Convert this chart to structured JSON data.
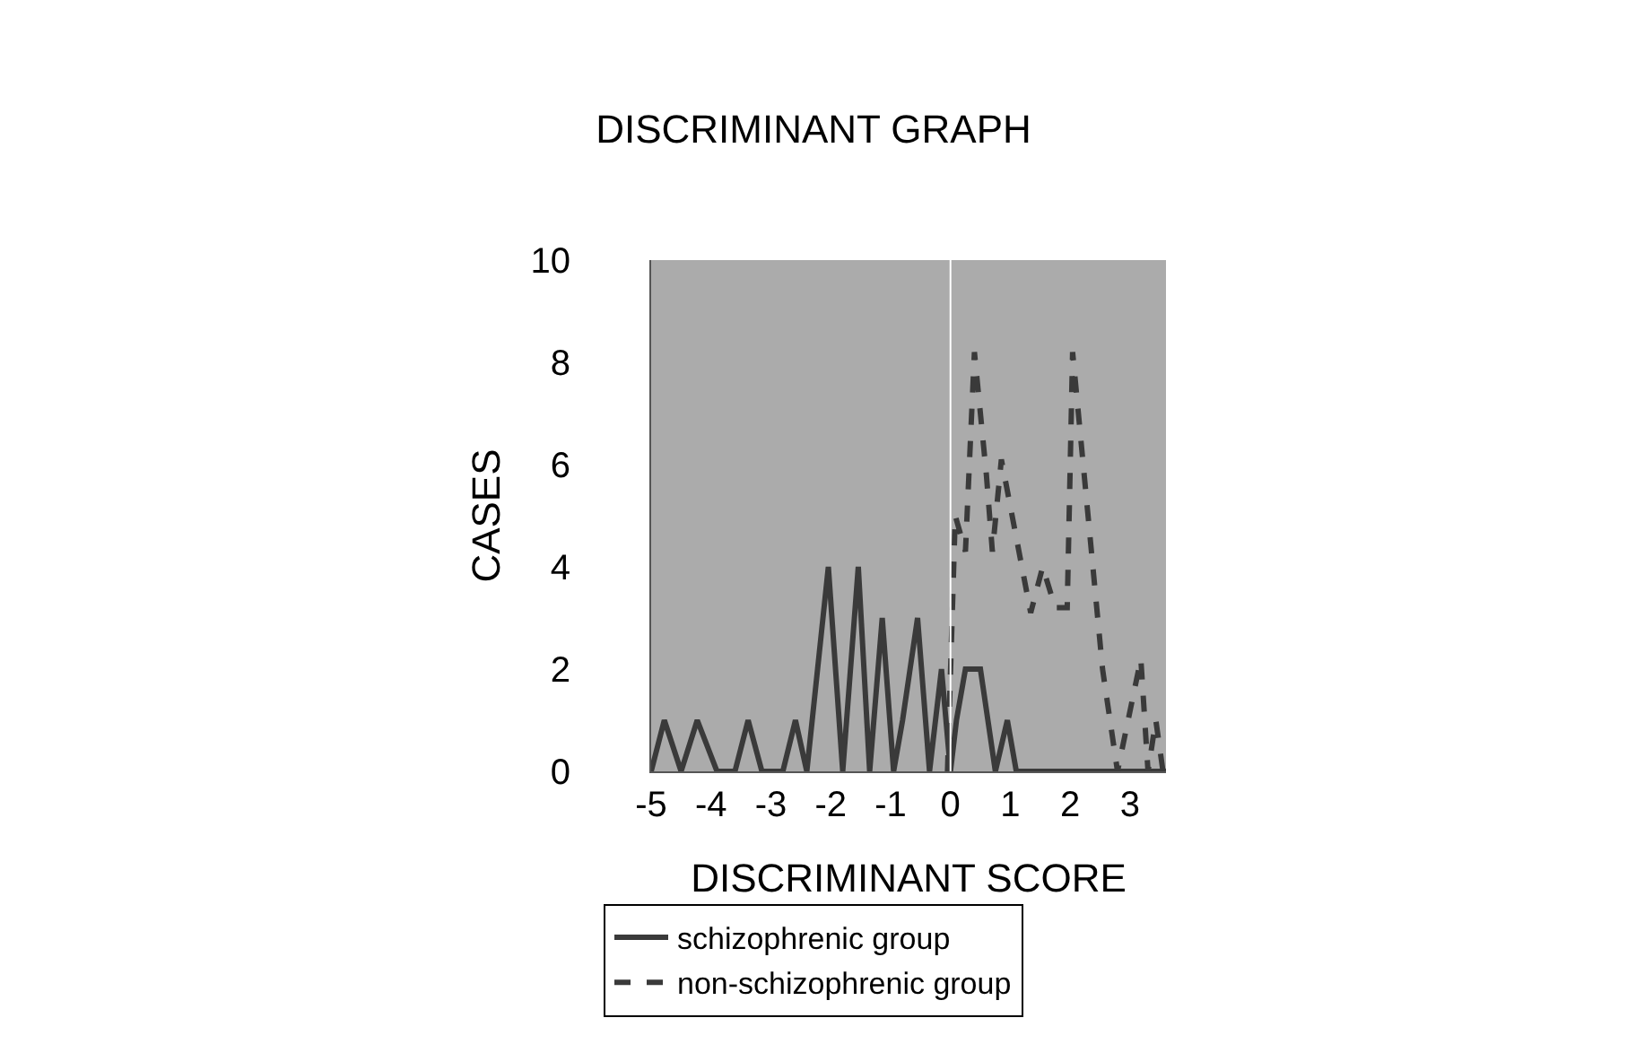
{
  "chart_data": {
    "type": "line",
    "title": "DISCRIMINANT GRAPH",
    "xlabel": "DISCRIMINANT SCORE",
    "ylabel": "CASES",
    "xlim": [
      -5,
      3.6
    ],
    "xticks": [
      -5,
      -4,
      -3,
      -2,
      -1,
      0,
      1,
      2,
      3
    ],
    "ylim": [
      0,
      10
    ],
    "yticks": [
      0,
      2,
      4,
      6,
      8,
      10
    ],
    "grid": false,
    "legend": "bottom",
    "ref_lines": [
      {
        "axis": "x",
        "value": 0,
        "color": "#ffffff"
      }
    ],
    "series": [
      {
        "name": "schizophrenic group",
        "color": "#3a3a3a",
        "line_style": "solid",
        "x": [
          -5.0,
          -4.78,
          -4.5,
          -4.23,
          -3.9,
          -3.6,
          -3.38,
          -3.15,
          -2.8,
          -2.59,
          -2.4,
          -2.04,
          -1.8,
          -1.54,
          -1.35,
          -1.14,
          -0.95,
          -0.8,
          -0.55,
          -0.35,
          -0.15,
          0,
          0.1,
          0.25,
          0.5,
          0.75,
          0.95,
          1.1,
          3.6
        ],
        "values": [
          0,
          1,
          0,
          1,
          0,
          0,
          1,
          0,
          0,
          1,
          0,
          4,
          0,
          4,
          0,
          3,
          0,
          1,
          3,
          0,
          2,
          0,
          1,
          2,
          2,
          0,
          1,
          0,
          0
        ]
      },
      {
        "name": "non-schizophrenic group",
        "color": "#3a3a3a",
        "line_style": "dashed",
        "x": [
          -0.05,
          0.08,
          0.25,
          0.4,
          0.6,
          0.7,
          0.85,
          1.34,
          1.54,
          1.75,
          1.95,
          2.04,
          2.54,
          2.79,
          3.18,
          3.3,
          3.43,
          3.55
        ],
        "values": [
          0,
          5,
          4.3,
          8.2,
          5.8,
          4.3,
          6.1,
          3.1,
          4,
          3.2,
          3.2,
          8.2,
          2,
          0,
          2.2,
          0,
          1,
          0
        ]
      }
    ]
  }
}
